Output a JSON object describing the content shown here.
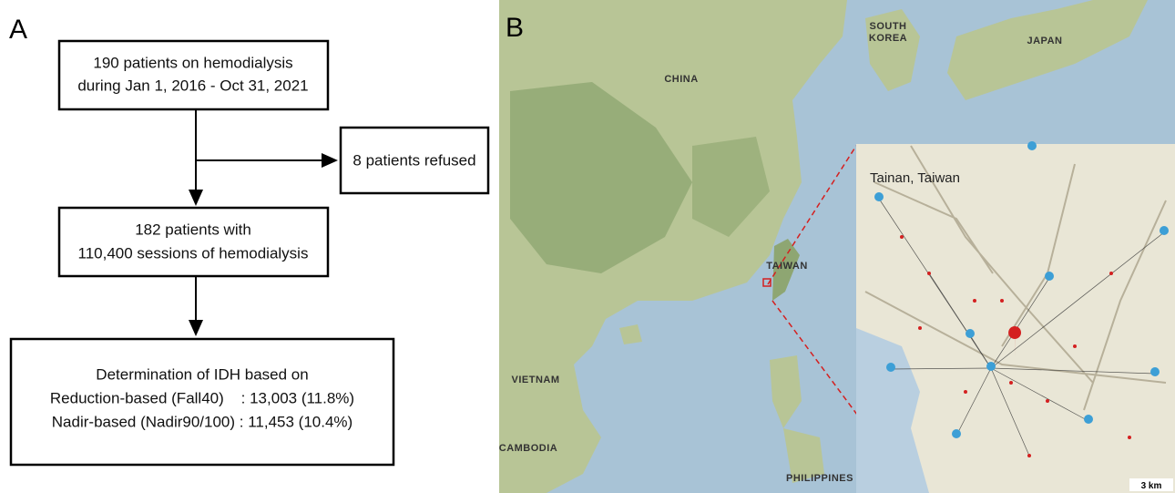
{
  "panel_a": {
    "label": "A",
    "nodes": [
      {
        "lines": [
          "190 patients on hemodialysis",
          "during Jan 1, 2016 - Oct 31, 2021"
        ]
      },
      {
        "lines": [
          "8 patients refused"
        ]
      },
      {
        "lines": [
          "182 patients with",
          "110,400 sessions of hemodialysis"
        ]
      },
      {
        "lines": [
          "Determination of IDH based on",
          "Reduction-based (Fall40)    : 13,003 (11.8%)",
          "Nadir-based (Nadir90/100) : 11,453 (10.4%)"
        ]
      }
    ]
  },
  "panel_b": {
    "label": "B",
    "map_labels": [
      "CHINA",
      "SOUTH\nKOREA",
      "JAPAN",
      "TAIWAN",
      "VIETNAM",
      "CAMBODIA",
      "PHILIPPINES"
    ],
    "inset": {
      "title": "Tainan, Taiwan",
      "scale": "3 km"
    }
  }
}
